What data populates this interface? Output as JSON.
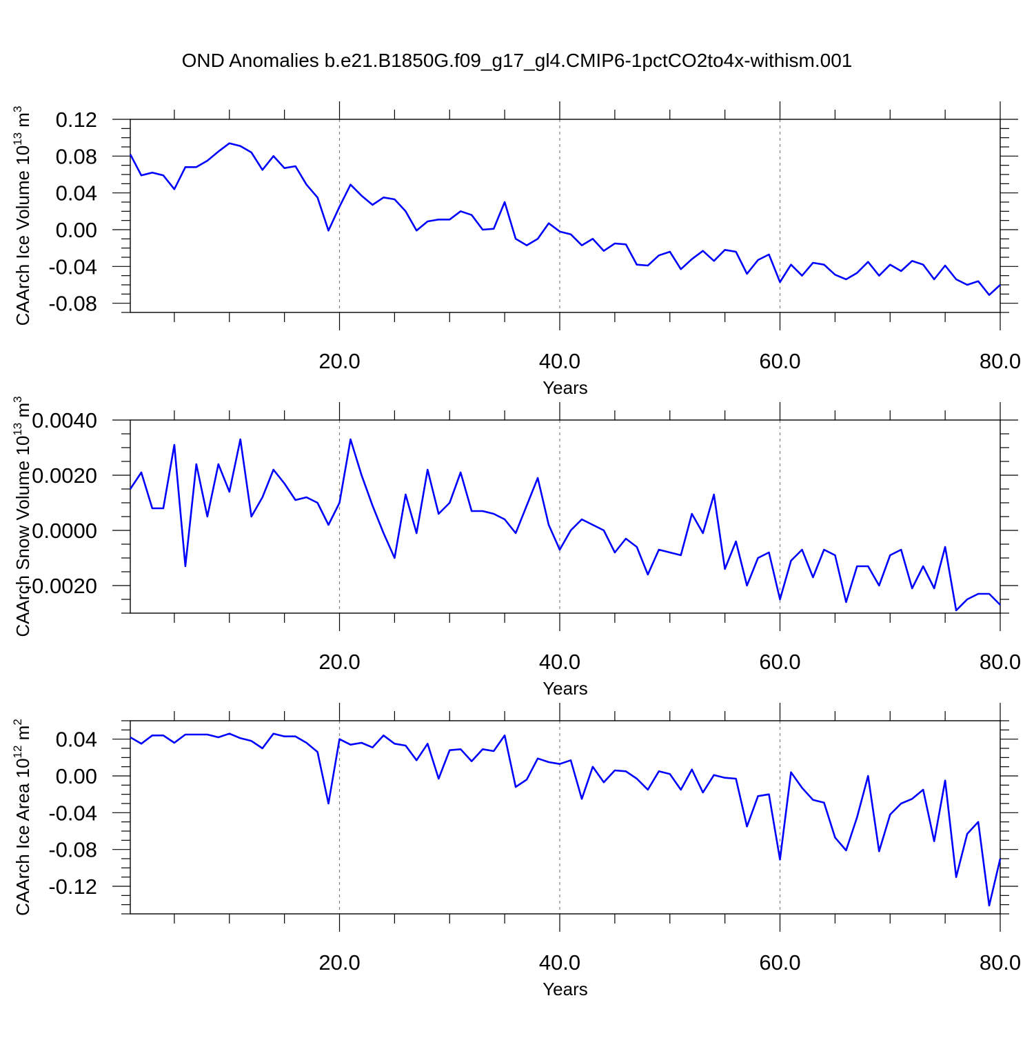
{
  "title": "OND Anomalies b.e21.B1850G.f09_g17_gl4.CMIP6-1pctCO2to4x-withism.001",
  "colors": {
    "series": "#0000ff",
    "axes": "#000000",
    "grid": "#808080",
    "background": "#ffffff"
  },
  "chart_data": [
    {
      "type": "line",
      "ylabel": "CAArch Ice Volume 10",
      "ylabel_sup": "13",
      "ylabel_unit": " m",
      "ylabel_unit_sup": "3",
      "xlabel": "Years",
      "xlim": [
        1,
        80
      ],
      "ylim": [
        -0.09,
        0.12
      ],
      "xticks": [
        20,
        40,
        60,
        80
      ],
      "xticklabels": [
        "20.0",
        "40.0",
        "60.0",
        "80.0"
      ],
      "yticks": [
        -0.08,
        -0.04,
        0.0,
        0.04,
        0.08,
        0.12
      ],
      "yticklabels": [
        "-0.08",
        "-0.04",
        "0.00",
        "0.04",
        "0.08",
        "0.12"
      ],
      "grid": "vertical dashed at major x ticks",
      "series": [
        {
          "x": [
            1,
            2,
            3,
            4,
            5,
            6,
            7,
            8,
            9,
            10,
            11,
            12,
            13,
            14,
            15,
            16,
            17,
            18,
            19,
            20,
            21,
            22,
            23,
            24,
            25,
            26,
            27,
            28,
            29,
            30,
            31,
            32,
            33,
            34,
            35,
            36,
            37,
            38,
            39,
            40,
            41,
            42,
            43,
            44,
            45,
            46,
            47,
            48,
            49,
            50,
            51,
            52,
            53,
            54,
            55,
            56,
            57,
            58,
            59,
            60,
            61,
            62,
            63,
            64,
            65,
            66,
            67,
            68,
            69,
            70,
            71,
            72,
            73,
            74,
            75,
            76,
            77,
            78,
            79,
            80
          ],
          "values": [
            0.082,
            0.059,
            0.062,
            0.059,
            0.044,
            0.068,
            0.068,
            0.075,
            0.085,
            0.094,
            0.091,
            0.084,
            0.065,
            0.08,
            0.067,
            0.069,
            0.049,
            0.035,
            -0.001,
            0.025,
            0.049,
            0.037,
            0.027,
            0.035,
            0.033,
            0.02,
            -0.001,
            0.009,
            0.011,
            0.011,
            0.02,
            0.016,
            0.0,
            0.001,
            0.03,
            -0.01,
            -0.017,
            -0.01,
            0.007,
            -0.002,
            -0.005,
            -0.017,
            -0.01,
            -0.023,
            -0.015,
            -0.016,
            -0.038,
            -0.039,
            -0.028,
            -0.024,
            -0.043,
            -0.032,
            -0.023,
            -0.034,
            -0.022,
            -0.024,
            -0.048,
            -0.033,
            -0.027,
            -0.057,
            -0.038,
            -0.05,
            -0.036,
            -0.038,
            -0.049,
            -0.054,
            -0.047,
            -0.035,
            -0.05,
            -0.038,
            -0.045,
            -0.034,
            -0.038,
            -0.054,
            -0.039,
            -0.054,
            -0.06,
            -0.056,
            -0.071,
            -0.06
          ]
        }
      ]
    },
    {
      "type": "line",
      "ylabel": "CAArch Snow Volume 10",
      "ylabel_sup": "13",
      "ylabel_unit": " m",
      "ylabel_unit_sup": "3",
      "xlabel": "Years",
      "xlim": [
        1,
        80
      ],
      "ylim": [
        -0.003,
        0.004
      ],
      "xticks": [
        20,
        40,
        60,
        80
      ],
      "xticklabels": [
        "20.0",
        "40.0",
        "60.0",
        "80.0"
      ],
      "yticks": [
        -0.002,
        0.0,
        0.002,
        0.004
      ],
      "yticklabels": [
        "-0.0020",
        "0.0000",
        "0.0020",
        "0.0040"
      ],
      "grid": "vertical dashed at major x ticks",
      "series": [
        {
          "x": [
            1,
            2,
            3,
            4,
            5,
            6,
            7,
            8,
            9,
            10,
            11,
            12,
            13,
            14,
            15,
            16,
            17,
            18,
            19,
            20,
            21,
            22,
            23,
            24,
            25,
            26,
            27,
            28,
            29,
            30,
            31,
            32,
            33,
            34,
            35,
            36,
            37,
            38,
            39,
            40,
            41,
            42,
            43,
            44,
            45,
            46,
            47,
            48,
            49,
            50,
            51,
            52,
            53,
            54,
            55,
            56,
            57,
            58,
            59,
            60,
            61,
            62,
            63,
            64,
            65,
            66,
            67,
            68,
            69,
            70,
            71,
            72,
            73,
            74,
            75,
            76,
            77,
            78,
            79,
            80
          ],
          "values": [
            0.0015,
            0.0021,
            0.0008,
            0.0008,
            0.0031,
            -0.0013,
            0.0024,
            0.0005,
            0.0024,
            0.0014,
            0.0033,
            0.0005,
            0.0012,
            0.0022,
            0.0017,
            0.0011,
            0.0012,
            0.001,
            0.0002,
            0.001,
            0.0033,
            0.002,
            0.0009,
            -0.0001,
            -0.001,
            0.0013,
            -0.0001,
            0.0022,
            0.0006,
            0.001,
            0.0021,
            0.0007,
            0.0007,
            0.0006,
            0.0004,
            -0.0001,
            0.0009,
            0.0019,
            0.0002,
            -0.0007,
            0.0,
            0.0004,
            0.0002,
            0.0,
            -0.0008,
            -0.0003,
            -0.0006,
            -0.0016,
            -0.0007,
            -0.0008,
            -0.0009,
            0.0006,
            -0.0001,
            0.0013,
            -0.0014,
            -0.0004,
            -0.002,
            -0.001,
            -0.0008,
            -0.0025,
            -0.0011,
            -0.0007,
            -0.0017,
            -0.0007,
            -0.0009,
            -0.0026,
            -0.0013,
            -0.0013,
            -0.002,
            -0.0009,
            -0.0007,
            -0.0021,
            -0.0013,
            -0.0021,
            -0.0006,
            -0.0029,
            -0.0025,
            -0.0023,
            -0.0023,
            -0.0027
          ]
        }
      ]
    },
    {
      "type": "line",
      "ylabel": "CAArch Ice Area 10",
      "ylabel_sup": "12",
      "ylabel_unit": " m",
      "ylabel_unit_sup": "2",
      "xlabel": "Years",
      "xlim": [
        1,
        80
      ],
      "ylim": [
        -0.15,
        0.06
      ],
      "xticks": [
        20,
        40,
        60,
        80
      ],
      "xticklabels": [
        "20.0",
        "40.0",
        "60.0",
        "80.0"
      ],
      "yticks": [
        -0.12,
        -0.08,
        -0.04,
        0.0,
        0.04
      ],
      "yticklabels": [
        "-0.12",
        "-0.08",
        "-0.04",
        "0.00",
        "0.04"
      ],
      "grid": "vertical dashed at major x ticks",
      "series": [
        {
          "x": [
            1,
            2,
            3,
            4,
            5,
            6,
            7,
            8,
            9,
            10,
            11,
            12,
            13,
            14,
            15,
            16,
            17,
            18,
            19,
            20,
            21,
            22,
            23,
            24,
            25,
            26,
            27,
            28,
            29,
            30,
            31,
            32,
            33,
            34,
            35,
            36,
            37,
            38,
            39,
            40,
            41,
            42,
            43,
            44,
            45,
            46,
            47,
            48,
            49,
            50,
            51,
            52,
            53,
            54,
            55,
            56,
            57,
            58,
            59,
            60,
            61,
            62,
            63,
            64,
            65,
            66,
            67,
            68,
            69,
            70,
            71,
            72,
            73,
            74,
            75,
            76,
            77,
            78,
            79,
            80
          ],
          "values": [
            0.042,
            0.035,
            0.044,
            0.044,
            0.036,
            0.045,
            0.045,
            0.045,
            0.042,
            0.046,
            0.041,
            0.038,
            0.03,
            0.046,
            0.043,
            0.043,
            0.036,
            0.026,
            -0.03,
            0.04,
            0.034,
            0.036,
            0.031,
            0.044,
            0.035,
            0.033,
            0.017,
            0.035,
            -0.003,
            0.028,
            0.029,
            0.016,
            0.029,
            0.027,
            0.044,
            -0.012,
            -0.004,
            0.019,
            0.015,
            0.013,
            0.017,
            -0.025,
            0.01,
            -0.007,
            0.006,
            0.005,
            -0.003,
            -0.015,
            0.005,
            0.002,
            -0.015,
            0.007,
            -0.018,
            0.001,
            -0.002,
            -0.003,
            -0.055,
            -0.022,
            -0.02,
            -0.091,
            0.004,
            -0.013,
            -0.026,
            -0.029,
            -0.067,
            -0.081,
            -0.045,
            0.0,
            -0.082,
            -0.042,
            -0.03,
            -0.025,
            -0.015,
            -0.071,
            -0.005,
            -0.11,
            -0.063,
            -0.05,
            -0.141,
            -0.09
          ]
        }
      ]
    }
  ]
}
